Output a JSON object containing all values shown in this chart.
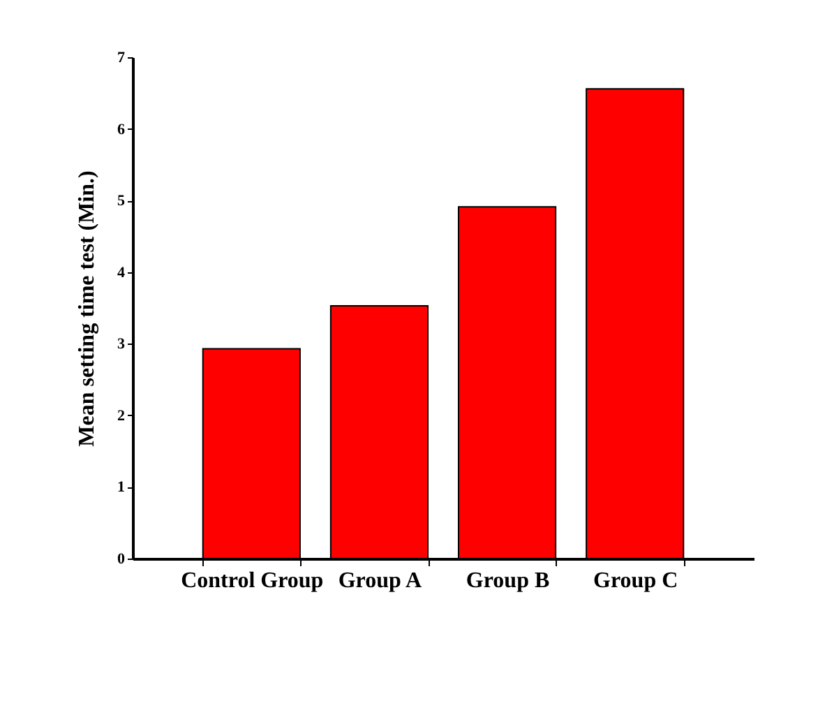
{
  "chart_data": {
    "type": "bar",
    "ylabel": "Mean setting time test (Min.)",
    "categories": [
      "Control Group",
      "Group A",
      "Group B",
      "Group C"
    ],
    "values": [
      2.93,
      3.53,
      4.91,
      6.56
    ],
    "color": "#ff0000",
    "ylim": [
      0,
      7
    ],
    "yticks": [
      0,
      1,
      2,
      3,
      4,
      5,
      6,
      7
    ],
    "grid": false
  }
}
